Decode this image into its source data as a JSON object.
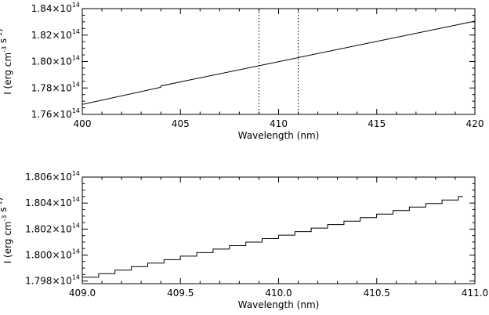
{
  "chart_data": [
    {
      "type": "line",
      "xlabel": "Wavelength (nm)",
      "ylabel": "I (erg cm^-3 s^-1)",
      "xlim": [
        400,
        420
      ],
      "ylim": [
        176000000000000.0,
        184000000000000.0
      ],
      "xticks": [
        400,
        405,
        410,
        415,
        420
      ],
      "xtick_labels": [
        "400",
        "405",
        "410",
        "415",
        "420"
      ],
      "yticks": [
        176000000000000.0,
        178000000000000.0,
        180000000000000.0,
        182000000000000.0,
        184000000000000.0
      ],
      "ytick_labels": [
        "1.76×10^14",
        "1.78×10^14",
        "1.80×10^14",
        "1.82×10^14",
        "1.84×10^14"
      ],
      "series": [
        {
          "x": [
            400,
            404,
            404,
            420
          ],
          "y": [
            176750000000000.0,
            178050000000000.0,
            178150000000000.0,
            183050000000000.0
          ],
          "style": "solid"
        }
      ],
      "vlines": [
        409,
        411
      ],
      "vline_style": "dotted"
    },
    {
      "type": "line",
      "xlabel": "Wavelength (nm)",
      "ylabel": "I (erg cm^-3 s^-1)",
      "xlim": [
        409.0,
        411.0
      ],
      "ylim": [
        179780000000000.0,
        180600000000000.0
      ],
      "xticks": [
        409.0,
        409.5,
        410.0,
        410.5,
        411.0
      ],
      "xtick_labels": [
        "409.0",
        "409.5",
        "410.0",
        "410.5",
        "411.0"
      ],
      "yticks": [
        179800000000000.0,
        180000000000000.0,
        180200000000000.0,
        180400000000000.0,
        180600000000000.0
      ],
      "ytick_labels": [
        "1.798×10^14",
        "1.800×10^14",
        "1.802×10^14",
        "1.804×10^14",
        "1.806×10^14"
      ],
      "series": [
        {
          "style": "step",
          "x_start": 409.0,
          "x_end": 410.94,
          "x_step": 0.0833,
          "y_start": 179830000000000.0,
          "y_end": 180450000000000.0
        }
      ]
    }
  ]
}
